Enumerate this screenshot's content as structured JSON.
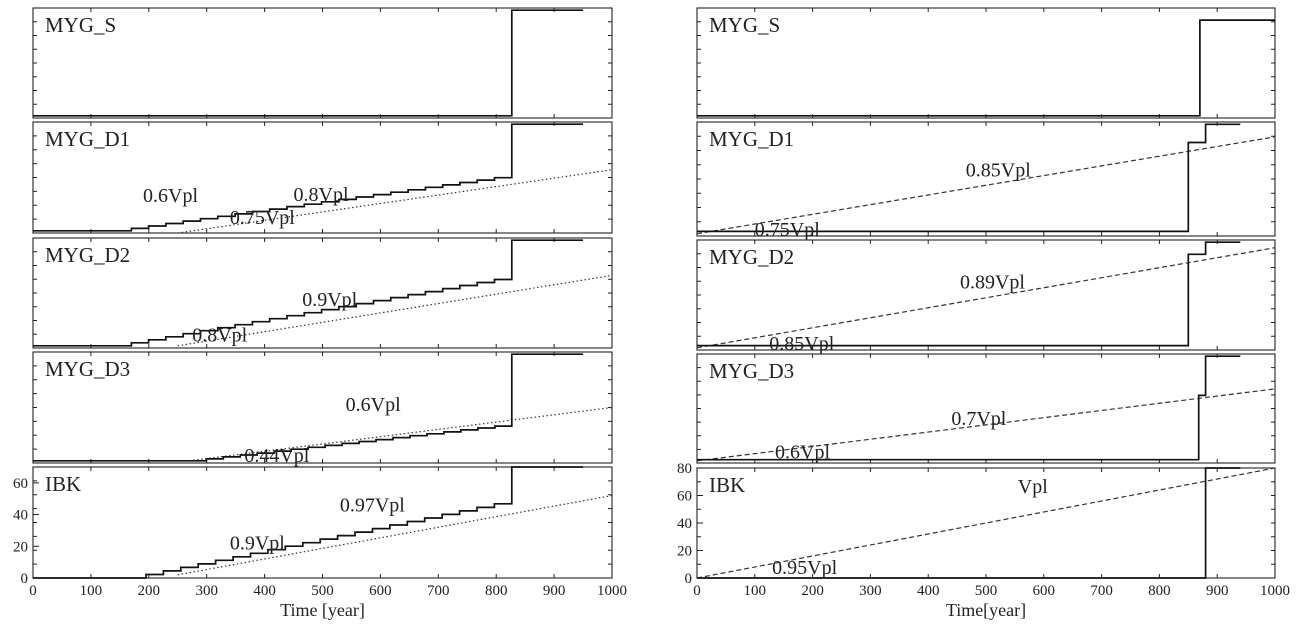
{
  "chart_data": [
    {
      "type": "line",
      "xlabel": "Time [year]",
      "xlim": [
        0,
        1000
      ],
      "xticks": [
        "0",
        "100",
        "200",
        "300",
        "400",
        "500",
        "600",
        "700",
        "800",
        "900",
        "1000"
      ],
      "bottom_ylim": [
        0,
        70
      ],
      "bottom_yticks": [
        "0",
        "20",
        "40",
        "60"
      ],
      "panels": [
        {
          "label": "MYG_S",
          "ylim": [
            0,
            1
          ],
          "series": [
            {
              "x": [
                0,
                827,
                827,
                950
              ],
              "y": [
                0.02,
                0.02,
                0.98,
                0.98
              ]
            }
          ],
          "trend": null,
          "annotations": []
        },
        {
          "label": "MYG_D1",
          "ylim": [
            0,
            1
          ],
          "series": [
            {
              "x": [
                0,
                140,
                827,
                827,
                950
              ],
              "y": [
                0.02,
                0.02,
                0.52,
                0.98,
                0.98
              ]
            }
          ],
          "trend": {
            "x": [
              250,
              1000
            ],
            "y": [
              0.0,
              0.57
            ],
            "style": "dotted"
          },
          "annotations": [
            {
              "text": "0.6Vpl",
              "x": 190,
              "y": 0.28
            },
            {
              "text": "0.75Vpl",
              "x": 340,
              "y": 0.08
            },
            {
              "text": "0.8Vpl",
              "x": 450,
              "y": 0.29
            }
          ]
        },
        {
          "label": "MYG_D2",
          "ylim": [
            0,
            1
          ],
          "series": [
            {
              "x": [
                0,
                140,
                827,
                827,
                950
              ],
              "y": [
                0.02,
                0.02,
                0.65,
                0.98,
                0.98
              ]
            }
          ],
          "trend": {
            "x": [
              250,
              1000
            ],
            "y": [
              0.02,
              0.66
            ],
            "style": "dotted"
          },
          "annotations": [
            {
              "text": "0.9Vpl",
              "x": 465,
              "y": 0.38
            },
            {
              "text": "0.8Vpl",
              "x": 275,
              "y": 0.06
            }
          ]
        },
        {
          "label": "MYG_D3",
          "ylim": [
            0,
            1
          ],
          "series": [
            {
              "x": [
                0,
                270,
                827,
                827,
                950
              ],
              "y": [
                0.02,
                0.02,
                0.35,
                0.98,
                0.98
              ]
            }
          ],
          "trend": {
            "x": [
              270,
              1000
            ],
            "y": [
              0.02,
              0.5
            ],
            "style": "dotted"
          },
          "annotations": [
            {
              "text": "0.6Vpl",
              "x": 540,
              "y": 0.47
            },
            {
              "text": "0.44Vpl",
              "x": 365,
              "y": 0.01
            }
          ]
        },
        {
          "label": "IBK",
          "ylim": [
            0,
            70
          ],
          "series": [
            {
              "x": [
                0,
                165,
                827,
                827,
                950
              ],
              "y": [
                0,
                0,
                49,
                70,
                70
              ]
            }
          ],
          "trend": {
            "x": [
              250,
              1000
            ],
            "y": [
              2,
              52
            ],
            "style": "dotted"
          },
          "annotations": [
            {
              "text": "0.97Vpl",
              "x": 530,
              "y": 42
            },
            {
              "text": "0.9Vpl",
              "x": 340,
              "y": 18
            }
          ]
        }
      ]
    },
    {
      "type": "line",
      "xlabel": "Time[year]",
      "xlim": [
        0,
        1000
      ],
      "xticks": [
        "0",
        "100",
        "200",
        "300",
        "400",
        "500",
        "600",
        "700",
        "800",
        "900",
        "1000"
      ],
      "bottom_ylim": [
        0,
        80
      ],
      "bottom_yticks": [
        "0",
        "20",
        "40",
        "60",
        "80"
      ],
      "panels": [
        {
          "label": "MYG_S",
          "ylim": [
            0,
            1
          ],
          "series": [
            {
              "x": [
                0,
                870,
                870,
                1000
              ],
              "y": [
                0.02,
                0.02,
                0.89,
                0.89
              ]
            }
          ],
          "trend": null,
          "annotations": []
        },
        {
          "label": "MYG_D1",
          "ylim": [
            0,
            1
          ],
          "series": [
            {
              "x": [
                0,
                850,
                850,
                880,
                880,
                940
              ],
              "y": [
                0.04,
                0.04,
                0.82,
                0.82,
                0.98,
                0.98
              ]
            }
          ],
          "trend": {
            "x": [
              0,
              1000
            ],
            "y": [
              0.02,
              0.87
            ],
            "style": "dashed"
          },
          "annotations": [
            {
              "text": "0.85Vpl",
              "x": 465,
              "y": 0.52
            },
            {
              "text": "0.75Vpl",
              "x": 100,
              "y": 0.0
            }
          ]
        },
        {
          "label": "MYG_D2",
          "ylim": [
            0,
            1
          ],
          "series": [
            {
              "x": [
                0,
                850,
                850,
                880,
                880,
                940
              ],
              "y": [
                0.04,
                0.04,
                0.87,
                0.87,
                0.98,
                0.98
              ]
            }
          ],
          "trend": {
            "x": [
              0,
              1000
            ],
            "y": [
              0.02,
              0.93
            ],
            "style": "dashed"
          },
          "annotations": [
            {
              "text": "0.89Vpl",
              "x": 455,
              "y": 0.56
            },
            {
              "text": "0.85Vpl",
              "x": 125,
              "y": 0.0
            }
          ]
        },
        {
          "label": "MYG_D3",
          "ylim": [
            0,
            1
          ],
          "series": [
            {
              "x": [
                0,
                868,
                868,
                880,
                880,
                940
              ],
              "y": [
                0.03,
                0.03,
                0.62,
                0.62,
                0.98,
                0.98
              ]
            }
          ],
          "trend": {
            "x": [
              0,
              1000
            ],
            "y": [
              0.02,
              0.68
            ],
            "style": "dashed"
          },
          "annotations": [
            {
              "text": "0.7Vpl",
              "x": 440,
              "y": 0.35
            },
            {
              "text": "0.6Vpl",
              "x": 135,
              "y": 0.04
            }
          ]
        },
        {
          "label": "IBK",
          "ylim": [
            0,
            80
          ],
          "series": [
            {
              "x": [
                0,
                880,
                880,
                940
              ],
              "y": [
                0,
                0,
                80,
                80
              ]
            }
          ],
          "trend": {
            "x": [
              0,
              1000
            ],
            "y": [
              0,
              80
            ],
            "style": "dashed"
          },
          "annotations": [
            {
              "text": "Vpl",
              "x": 555,
              "y": 62
            },
            {
              "text": "0.95Vpl",
              "x": 130,
              "y": 3
            }
          ]
        }
      ]
    }
  ]
}
